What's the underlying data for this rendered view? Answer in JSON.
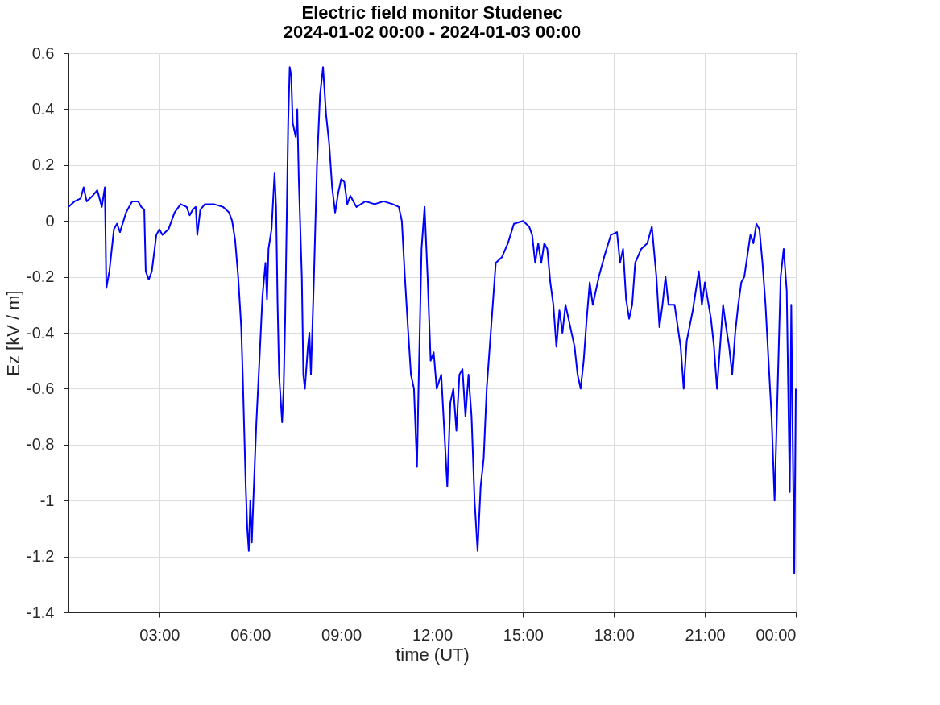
{
  "chart_data": {
    "type": "line",
    "title": [
      "Electric field monitor Studenec",
      "2024-01-02 00:00 - 2024-01-03 00:00"
    ],
    "xlabel": "time (UT)",
    "ylabel": "Ez [kV / m]",
    "xlim": [
      0,
      24
    ],
    "xticks": [
      {
        "value": 3,
        "label": "03:00"
      },
      {
        "value": 6,
        "label": "06:00"
      },
      {
        "value": 9,
        "label": "09:00"
      },
      {
        "value": 12,
        "label": "12:00"
      },
      {
        "value": 15,
        "label": "15:00"
      },
      {
        "value": 18,
        "label": "18:00"
      },
      {
        "value": 21,
        "label": "21:00"
      },
      {
        "value": 24,
        "label": "00:00"
      }
    ],
    "ylim": [
      -1.4,
      0.6
    ],
    "yticks": [
      -1.4,
      -1.2,
      -1,
      -0.8,
      -0.6,
      -0.4,
      -0.2,
      0,
      0.2,
      0.4,
      0.6
    ],
    "grid": true,
    "line_style": "solid",
    "marker": "none",
    "x": [
      0,
      0.2,
      0.4,
      0.5,
      0.6,
      0.8,
      0.95,
      1.1,
      1.2,
      1.25,
      1.35,
      1.5,
      1.6,
      1.7,
      1.9,
      2.1,
      2.3,
      2.4,
      2.5,
      2.55,
      2.65,
      2.75,
      2.9,
      3.0,
      3.1,
      3.3,
      3.5,
      3.7,
      3.9,
      4.0,
      4.1,
      4.2,
      4.25,
      4.35,
      4.5,
      4.8,
      5.1,
      5.3,
      5.4,
      5.5,
      5.6,
      5.7,
      5.75,
      5.8,
      5.85,
      5.9,
      5.95,
      6.0,
      6.05,
      6.1,
      6.2,
      6.3,
      6.4,
      6.5,
      6.55,
      6.6,
      6.7,
      6.8,
      6.85,
      6.9,
      6.95,
      7.05,
      7.1,
      7.15,
      7.2,
      7.25,
      7.3,
      7.35,
      7.4,
      7.5,
      7.55,
      7.6,
      7.7,
      7.75,
      7.8,
      7.9,
      7.95,
      8.0,
      8.1,
      8.2,
      8.3,
      8.4,
      8.5,
      8.6,
      8.7,
      8.8,
      8.9,
      9.0,
      9.1,
      9.2,
      9.3,
      9.5,
      9.8,
      10.1,
      10.4,
      10.7,
      10.9,
      11.0,
      11.1,
      11.2,
      11.3,
      11.4,
      11.5,
      11.55,
      11.65,
      11.75,
      11.85,
      11.95,
      12.05,
      12.15,
      12.3,
      12.4,
      12.5,
      12.6,
      12.7,
      12.8,
      12.9,
      13.0,
      13.1,
      13.2,
      13.3,
      13.4,
      13.5,
      13.6,
      13.7,
      13.8,
      13.9,
      14.0,
      14.1,
      14.3,
      14.5,
      14.7,
      15.0,
      15.2,
      15.3,
      15.4,
      15.5,
      15.6,
      15.7,
      15.8,
      15.9,
      16.0,
      16.1,
      16.2,
      16.3,
      16.4,
      16.5,
      16.7,
      16.8,
      16.9,
      17.0,
      17.1,
      17.2,
      17.3,
      17.5,
      17.7,
      17.9,
      18.1,
      18.2,
      18.3,
      18.4,
      18.5,
      18.6,
      18.7,
      18.9,
      19.1,
      19.25,
      19.4,
      19.5,
      19.6,
      19.7,
      19.8,
      20.0,
      20.2,
      20.3,
      20.4,
      20.6,
      20.8,
      20.9,
      21.0,
      21.2,
      21.3,
      21.4,
      21.5,
      21.6,
      21.7,
      21.8,
      21.9,
      22.0,
      22.1,
      22.2,
      22.3,
      22.5,
      22.6,
      22.7,
      22.8,
      22.9,
      23.0,
      23.1,
      23.2,
      23.3,
      23.4,
      23.5,
      23.6,
      23.7,
      23.8,
      23.85,
      23.9,
      23.95,
      24.0
    ],
    "series": [
      {
        "color": "#0000ff",
        "values": [
          0.05,
          0.07,
          0.08,
          0.12,
          0.07,
          0.09,
          0.11,
          0.05,
          0.12,
          -0.24,
          -0.18,
          -0.03,
          -0.01,
          -0.04,
          0.03,
          0.07,
          0.07,
          0.05,
          0.04,
          -0.18,
          -0.21,
          -0.18,
          -0.05,
          -0.03,
          -0.05,
          -0.03,
          0.03,
          0.06,
          0.05,
          0.02,
          0.04,
          0.05,
          -0.05,
          0.04,
          0.06,
          0.06,
          0.05,
          0.03,
          0.0,
          -0.07,
          -0.2,
          -0.38,
          -0.55,
          -0.75,
          -0.95,
          -1.1,
          -1.18,
          -1.0,
          -1.15,
          -1.0,
          -0.72,
          -0.5,
          -0.27,
          -0.15,
          -0.28,
          -0.1,
          -0.03,
          0.17,
          0.05,
          -0.3,
          -0.55,
          -0.72,
          -0.6,
          -0.35,
          0.0,
          0.35,
          0.55,
          0.52,
          0.35,
          0.3,
          0.4,
          0.15,
          -0.2,
          -0.55,
          -0.6,
          -0.45,
          -0.4,
          -0.55,
          -0.2,
          0.2,
          0.45,
          0.55,
          0.38,
          0.28,
          0.12,
          0.03,
          0.1,
          0.15,
          0.14,
          0.06,
          0.09,
          0.05,
          0.07,
          0.06,
          0.07,
          0.06,
          0.05,
          0.0,
          -0.2,
          -0.38,
          -0.55,
          -0.6,
          -0.88,
          -0.6,
          -0.1,
          0.05,
          -0.2,
          -0.5,
          -0.47,
          -0.6,
          -0.55,
          -0.75,
          -0.95,
          -0.65,
          -0.6,
          -0.75,
          -0.55,
          -0.53,
          -0.7,
          -0.55,
          -0.7,
          -1.0,
          -1.18,
          -0.95,
          -0.85,
          -0.6,
          -0.45,
          -0.3,
          -0.15,
          -0.13,
          -0.08,
          -0.01,
          0.0,
          -0.02,
          -0.05,
          -0.15,
          -0.08,
          -0.15,
          -0.08,
          -0.1,
          -0.22,
          -0.3,
          -0.45,
          -0.32,
          -0.4,
          -0.3,
          -0.35,
          -0.45,
          -0.55,
          -0.6,
          -0.5,
          -0.35,
          -0.22,
          -0.3,
          -0.2,
          -0.12,
          -0.05,
          -0.04,
          -0.15,
          -0.1,
          -0.28,
          -0.35,
          -0.3,
          -0.15,
          -0.1,
          -0.08,
          -0.02,
          -0.2,
          -0.38,
          -0.3,
          -0.2,
          -0.3,
          -0.3,
          -0.45,
          -0.6,
          -0.43,
          -0.32,
          -0.18,
          -0.3,
          -0.22,
          -0.35,
          -0.45,
          -0.6,
          -0.45,
          -0.3,
          -0.38,
          -0.45,
          -0.55,
          -0.4,
          -0.3,
          -0.22,
          -0.2,
          -0.05,
          -0.08,
          -0.01,
          -0.03,
          -0.15,
          -0.3,
          -0.5,
          -0.7,
          -1.0,
          -0.6,
          -0.2,
          -0.1,
          -0.25,
          -0.97,
          -0.3,
          -0.8,
          -1.26,
          -0.6
        ]
      }
    ]
  }
}
